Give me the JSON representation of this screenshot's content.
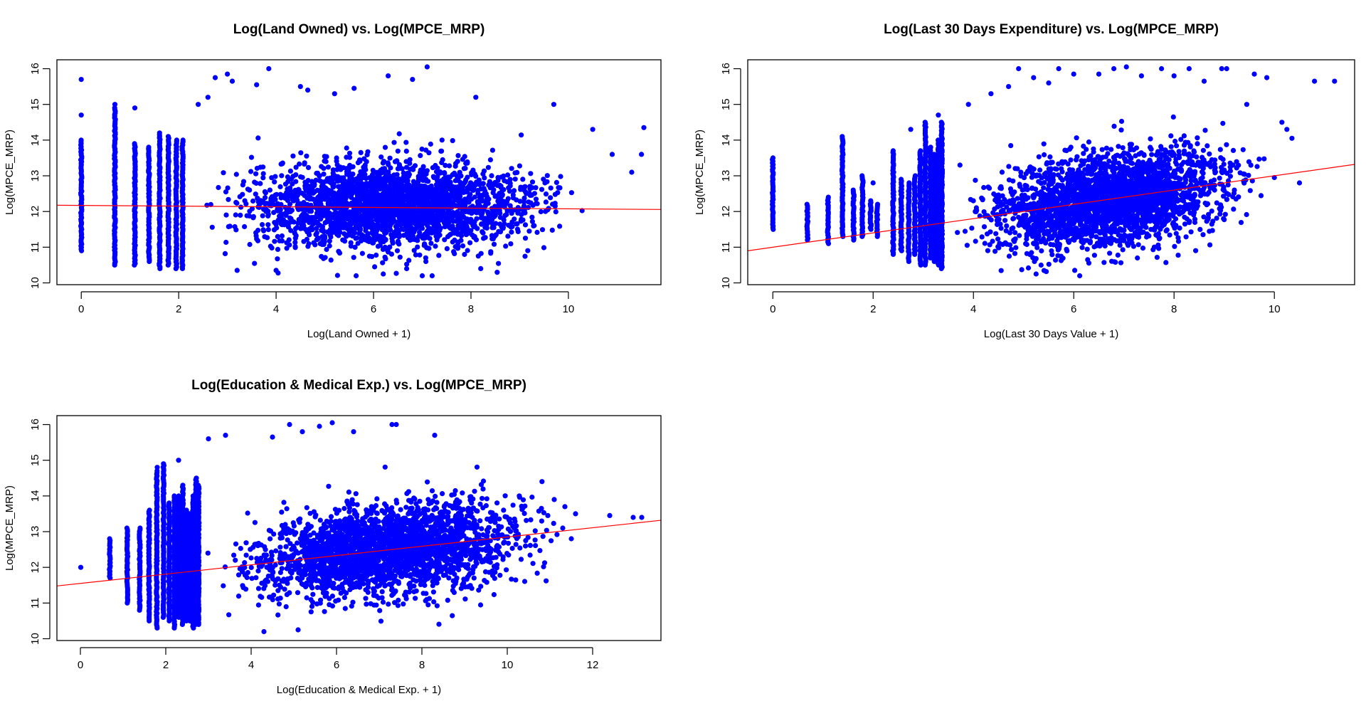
{
  "figure": {
    "background": "#ffffff",
    "point_color": "#0000ff",
    "line_color": "#ff0000"
  },
  "chart_data": [
    {
      "type": "scatter",
      "title": "Log(Land Owned) vs. Log(MPCE_MRP)",
      "xlabel": "Log(Land Owned + 1)",
      "ylabel": "Log(MPCE_MRP)",
      "xlim": [
        -0.5,
        11.9
      ],
      "ylim": [
        9.95,
        16.25
      ],
      "xticks": [
        0,
        2,
        4,
        6,
        8,
        10
      ],
      "yticks": [
        10,
        11,
        12,
        13,
        14,
        15,
        16
      ],
      "grid": false,
      "legend": "none",
      "point_cloud": {
        "discrete_x": [
          0,
          0.69,
          1.1,
          1.39,
          1.61,
          1.79,
          1.95,
          2.08
        ],
        "discrete_y_ranges": [
          [
            10.9,
            14.0
          ],
          [
            10.5,
            14.9
          ],
          [
            10.5,
            13.9
          ],
          [
            10.6,
            13.8
          ],
          [
            10.4,
            14.2
          ],
          [
            10.5,
            14.1
          ],
          [
            10.4,
            14.0
          ],
          [
            10.4,
            14.0
          ]
        ],
        "dense_region": {
          "x_range": [
            2.2,
            10.5
          ],
          "y_center": 12.15,
          "y_spread": 0.6
        },
        "n_points": 2600,
        "outliers": [
          [
            0,
            15.7
          ],
          [
            0,
            14.7
          ],
          [
            0.69,
            15.0
          ],
          [
            1.1,
            14.9
          ],
          [
            2.75,
            15.75
          ],
          [
            3.0,
            15.85
          ],
          [
            3.1,
            15.65
          ],
          [
            3.6,
            15.55
          ],
          [
            3.85,
            16.0
          ],
          [
            4.5,
            15.5
          ],
          [
            4.65,
            15.4
          ],
          [
            5.2,
            15.3
          ],
          [
            5.6,
            15.45
          ],
          [
            6.3,
            15.8
          ],
          [
            6.8,
            15.7
          ],
          [
            7.1,
            16.05
          ],
          [
            8.1,
            15.2
          ],
          [
            9.7,
            15.0
          ],
          [
            10.5,
            14.3
          ],
          [
            10.9,
            13.6
          ],
          [
            11.3,
            13.1
          ],
          [
            11.5,
            13.6
          ],
          [
            11.55,
            14.35
          ],
          [
            2.4,
            15.0
          ],
          [
            2.6,
            15.2
          ],
          [
            4.0,
            10.35
          ],
          [
            6.2,
            10.25
          ],
          [
            7.0,
            10.2
          ],
          [
            8.2,
            10.4
          ],
          [
            3.2,
            10.35
          ]
        ]
      },
      "regression_line": {
        "intercept": 12.17,
        "slope": -0.0095
      }
    },
    {
      "type": "scatter",
      "title": "Log(Last 30 Days Expenditure) vs. Log(MPCE_MRP)",
      "xlabel": "Log(Last 30 Days Value + 1)",
      "ylabel": "Log(MPCE_MRP)",
      "xlim": [
        -0.5,
        11.6
      ],
      "ylim": [
        9.95,
        16.25
      ],
      "xticks": [
        0,
        2,
        4,
        6,
        8,
        10
      ],
      "yticks": [
        10,
        11,
        12,
        13,
        14,
        15,
        16
      ],
      "grid": false,
      "legend": "none",
      "point_cloud": {
        "discrete_x": [
          0,
          0.69,
          1.1,
          1.39,
          1.61,
          1.79,
          1.95,
          2.08,
          2.4,
          2.56,
          2.71,
          2.83,
          2.94,
          3.04,
          3.14,
          3.22,
          3.3,
          3.37
        ],
        "discrete_y_ranges": [
          [
            11.5,
            13.5
          ],
          [
            11.2,
            12.2
          ],
          [
            11.1,
            12.4
          ],
          [
            11.3,
            14.1
          ],
          [
            11.2,
            12.6
          ],
          [
            11.3,
            13.0
          ],
          [
            11.5,
            12.3
          ],
          [
            11.3,
            12.2
          ],
          [
            10.8,
            13.7
          ],
          [
            10.9,
            12.9
          ],
          [
            10.6,
            12.8
          ],
          [
            10.8,
            13.0
          ],
          [
            10.5,
            13.7
          ],
          [
            10.5,
            14.5
          ],
          [
            10.7,
            13.8
          ],
          [
            10.6,
            13.6
          ],
          [
            10.5,
            14.0
          ],
          [
            10.4,
            14.5
          ]
        ],
        "dense_region": {
          "x_range": [
            3.5,
            10.0
          ],
          "y_center_at_x0": 11.0,
          "y_slope": 0.2,
          "y_spread": 0.65
        },
        "n_points": 2600,
        "outliers": [
          [
            10.8,
            15.65
          ],
          [
            11.2,
            15.65
          ],
          [
            10.25,
            14.3
          ],
          [
            10.35,
            14.05
          ],
          [
            10.15,
            14.5
          ],
          [
            9.85,
            15.75
          ],
          [
            9.6,
            15.85
          ],
          [
            9.45,
            15.0
          ],
          [
            9.05,
            16.0
          ],
          [
            8.95,
            16.0
          ],
          [
            8.6,
            15.65
          ],
          [
            8.3,
            16.0
          ],
          [
            8.0,
            15.8
          ],
          [
            7.75,
            16.0
          ],
          [
            7.35,
            15.8
          ],
          [
            7.05,
            16.05
          ],
          [
            6.8,
            16.0
          ],
          [
            6.5,
            15.85
          ],
          [
            6.0,
            15.85
          ],
          [
            5.7,
            16.0
          ],
          [
            5.5,
            15.6
          ],
          [
            5.2,
            15.75
          ],
          [
            4.9,
            16.0
          ],
          [
            4.7,
            15.5
          ],
          [
            4.35,
            15.3
          ],
          [
            3.9,
            15.0
          ],
          [
            3.3,
            14.7
          ],
          [
            2.75,
            14.3
          ],
          [
            10.0,
            12.95
          ],
          [
            10.5,
            12.8
          ],
          [
            2.0,
            12.8
          ]
        ]
      },
      "regression_line": {
        "intercept": 11.0,
        "slope": 0.2
      }
    },
    {
      "type": "scatter",
      "title": "Log(Education & Medical Exp.) vs. Log(MPCE_MRP)",
      "xlabel": "Log(Education & Medical Exp. + 1)",
      "ylabel": "Log(MPCE_MRP)",
      "xlim": [
        -0.55,
        13.6
      ],
      "ylim": [
        9.95,
        16.25
      ],
      "xticks": [
        0,
        2,
        4,
        6,
        8,
        10,
        12
      ],
      "yticks": [
        10,
        11,
        12,
        13,
        14,
        15,
        16
      ],
      "grid": false,
      "legend": "none",
      "point_cloud": {
        "discrete_x": [
          0,
          0.69,
          1.1,
          1.39,
          1.61,
          1.79,
          1.95,
          2.08,
          2.2,
          2.3,
          2.4,
          2.48,
          2.56,
          2.64,
          2.71,
          2.77
        ],
        "discrete_y_ranges": [
          [
            12.0,
            12.0
          ],
          [
            11.7,
            12.8
          ],
          [
            11.0,
            13.1
          ],
          [
            10.8,
            13.1
          ],
          [
            10.5,
            13.6
          ],
          [
            10.3,
            14.7
          ],
          [
            10.6,
            14.9
          ],
          [
            10.5,
            13.8
          ],
          [
            10.3,
            14.0
          ],
          [
            10.6,
            14.0
          ],
          [
            10.4,
            14.3
          ],
          [
            10.5,
            13.6
          ],
          [
            10.5,
            13.5
          ],
          [
            10.3,
            14.0
          ],
          [
            10.4,
            14.5
          ],
          [
            10.4,
            14.3
          ]
        ],
        "dense_region": {
          "x_range": [
            2.8,
            11.5
          ],
          "y_center_at_x0": 11.55,
          "y_slope": 0.13,
          "y_spread": 0.6
        },
        "n_points": 2600,
        "outliers": [
          [
            12.4,
            13.45
          ],
          [
            12.95,
            13.4
          ],
          [
            13.15,
            13.4
          ],
          [
            11.6,
            13.5
          ],
          [
            11.35,
            13.7
          ],
          [
            11.1,
            13.9
          ],
          [
            10.8,
            13.65
          ],
          [
            10.95,
            13.45
          ],
          [
            3.0,
            15.6
          ],
          [
            3.4,
            15.7
          ],
          [
            4.5,
            15.65
          ],
          [
            4.9,
            16.0
          ],
          [
            5.2,
            15.8
          ],
          [
            5.6,
            15.95
          ],
          [
            5.9,
            16.05
          ],
          [
            6.4,
            15.8
          ],
          [
            7.3,
            16.0
          ],
          [
            7.4,
            16.0
          ],
          [
            8.3,
            15.7
          ],
          [
            2.3,
            15.0
          ],
          [
            1.8,
            14.8
          ],
          [
            11.3,
            13.1
          ],
          [
            11.5,
            12.8
          ],
          [
            4.3,
            10.2
          ],
          [
            5.1,
            10.25
          ]
        ]
      },
      "regression_line": {
        "intercept": 11.55,
        "slope": 0.13
      }
    }
  ]
}
